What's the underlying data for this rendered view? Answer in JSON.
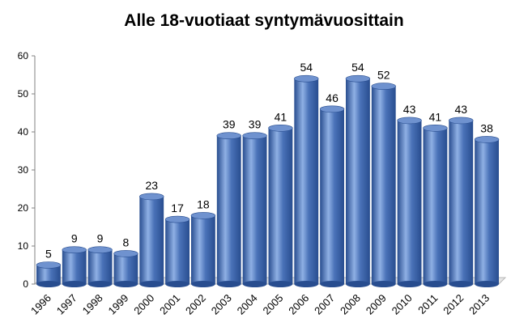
{
  "chart_data": {
    "type": "bar",
    "title": "Alle 18-vuotiaat syntymävuosittain",
    "xlabel": "",
    "ylabel": "",
    "ylim": [
      0,
      60
    ],
    "yticks": [
      0,
      10,
      20,
      30,
      40,
      50,
      60
    ],
    "grid": false,
    "legend": "none",
    "categories": [
      "1996",
      "1997",
      "1998",
      "1999",
      "2000",
      "2001",
      "2002",
      "2003",
      "2004",
      "2005",
      "2006",
      "2007",
      "2008",
      "2009",
      "2010",
      "2011",
      "2012",
      "2013"
    ],
    "values": [
      5,
      9,
      9,
      8,
      23,
      17,
      18,
      39,
      39,
      41,
      54,
      46,
      54,
      52,
      43,
      41,
      43,
      38
    ],
    "data_labels": true,
    "style": "3d-cylinder",
    "colors": {
      "bar": "#4a72b8",
      "bar_dark": "#284d8f",
      "bar_light": "#8fb0e4",
      "top": "#6f92cf",
      "axis": "#808080",
      "floor": "#b8b8b8"
    }
  }
}
